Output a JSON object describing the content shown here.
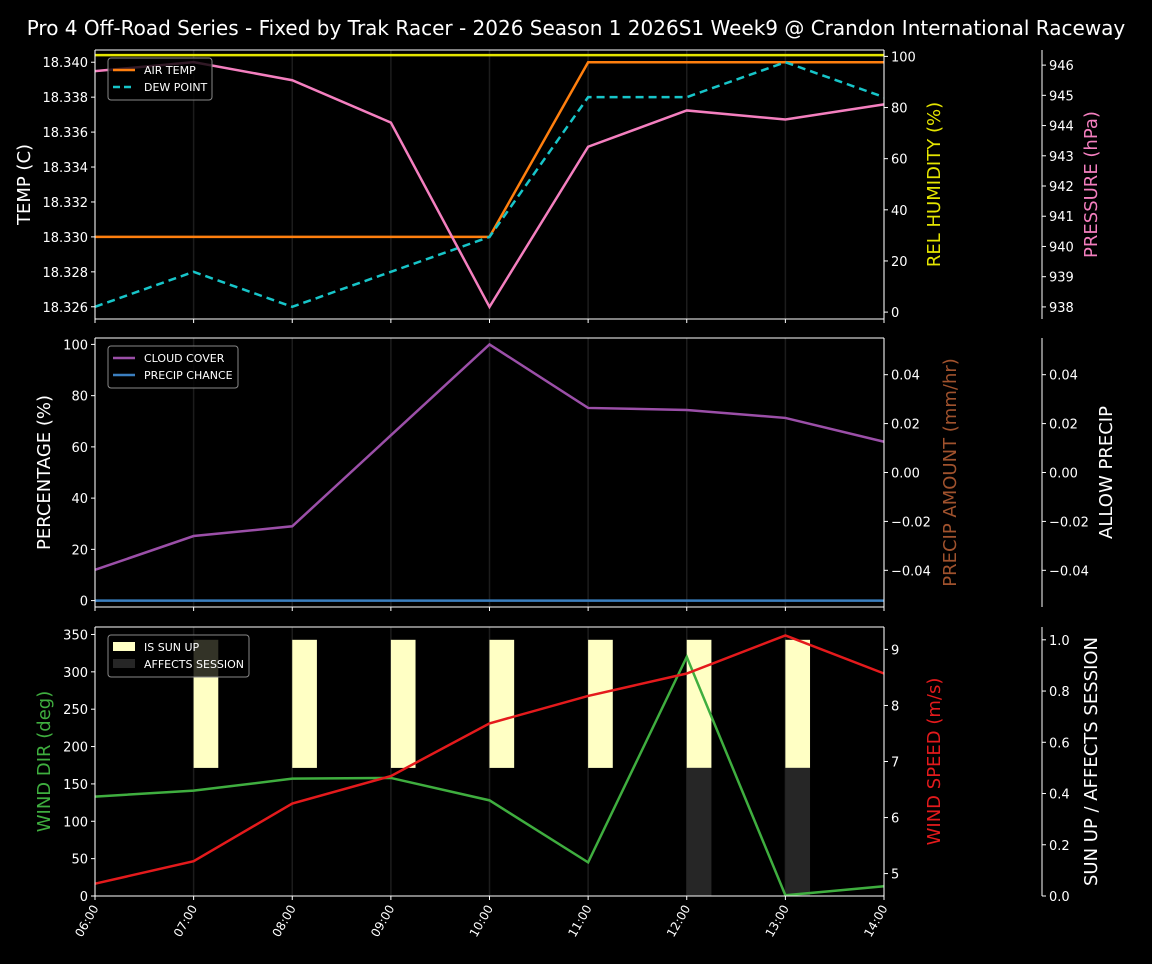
{
  "chart_data": {
    "title": "Pro 4 Off-Road Series - Fixed by Trak Racer - 2026 Season 1 2026S1 Week9 @ Crandon International Raceway",
    "x": [
      "06:00",
      "07:00",
      "08:00",
      "09:00",
      "10:00",
      "11:00",
      "12:00",
      "13:00",
      "14:00"
    ],
    "panels": [
      {
        "type": "line",
        "ylabel": "TEMP (C)",
        "ylim": [
          18.3253,
          18.3407
        ],
        "yticks": [
          "18.326",
          "18.328",
          "18.330",
          "18.332",
          "18.334",
          "18.336",
          "18.338",
          "18.340"
        ],
        "ytick_values": [
          18.326,
          18.328,
          18.33,
          18.332,
          18.334,
          18.336,
          18.338,
          18.34
        ],
        "legend": "top-left",
        "series": [
          {
            "name": "AIR TEMP",
            "color": "#ff7f0e",
            "dash": false,
            "axis": "left",
            "values": [
              18.33,
              18.33,
              18.33,
              18.33,
              18.33,
              18.34,
              18.34,
              18.34,
              18.34
            ]
          },
          {
            "name": "DEW POINT",
            "color": "#17c5c9",
            "dash": true,
            "axis": "left",
            "values": [
              18.326,
              18.328,
              18.326,
              18.328,
              18.33,
              18.338,
              18.338,
              18.34,
              18.338
            ]
          },
          {
            "color": "#e5e500",
            "axis": "right1",
            "values": [
              100.5,
              100.5,
              100.5,
              100.5,
              100.5,
              100.5,
              100.5,
              100.5,
              100.5
            ]
          },
          {
            "color": "#f47fbf",
            "axis": "right2",
            "values": [
              945.8,
              946.1,
              945.5,
              944.1,
              938.0,
              943.3,
              944.5,
              944.2,
              944.7
            ]
          }
        ],
        "right1": {
          "label": "REL HUMIDITY (%)",
          "color": "#e5e500",
          "ylim": [
            -2.7,
            102.5
          ],
          "ticks": [
            0,
            20,
            40,
            60,
            80,
            100
          ]
        },
        "right2": {
          "label": "PRESSURE (hPa)",
          "color": "#f47fbf",
          "ylim": [
            937.6,
            946.5
          ],
          "ticks": [
            938,
            939,
            940,
            941,
            942,
            943,
            944,
            945,
            946
          ]
        }
      },
      {
        "type": "line",
        "ylabel": "PERCENTAGE (%)",
        "ylim": [
          -2.5,
          102.5
        ],
        "yticks": [
          "0",
          "20",
          "40",
          "60",
          "80",
          "100"
        ],
        "ytick_values": [
          0,
          20,
          40,
          60,
          80,
          100
        ],
        "legend": "top-left",
        "series": [
          {
            "name": "CLOUD COVER",
            "color": "#9b4fa8",
            "axis": "left",
            "values": [
              12,
              25.2,
              29,
              64.5,
              100,
              75.2,
              74.4,
              71.3,
              62
            ]
          },
          {
            "name": "PRECIP CHANCE",
            "color": "#3b7fc0",
            "axis": "left",
            "values": [
              0,
              0,
              0,
              0,
              0,
              0,
              0,
              0,
              0
            ]
          }
        ],
        "right1": {
          "label": "PRECIP AMOUNT (mm/hr)",
          "color": "#a0522d",
          "ylim": [
            -0.055,
            0.055
          ],
          "ticks": [
            -0.04,
            -0.02,
            0.0,
            0.02,
            0.04
          ],
          "tick_labels": [
            "−0.04",
            "−0.02",
            "0.00",
            "0.02",
            "0.04"
          ]
        },
        "right2": {
          "label": "ALLOW PRECIP",
          "color": "#ffffff",
          "ylim": [
            -0.055,
            0.055
          ],
          "ticks": [
            -0.04,
            -0.02,
            0.0,
            0.02,
            0.04
          ],
          "tick_labels": [
            "−0.04",
            "−0.02",
            "0.00",
            "0.02",
            "0.04"
          ]
        }
      },
      {
        "type": "line+bar",
        "ylabel": "WIND DIR (deg)",
        "ylabel_color": "#3fae3f",
        "ylim": [
          0,
          360
        ],
        "yticks": [
          "0",
          "50",
          "100",
          "150",
          "200",
          "250",
          "300",
          "350"
        ],
        "ytick_values": [
          0,
          50,
          100,
          150,
          200,
          250,
          300,
          350
        ],
        "legend": "top-left",
        "bars": [
          {
            "name": "IS SUN UP",
            "color": "#ffffc4",
            "base": 0.5,
            "values": [
              0,
              1,
              1,
              1,
              1,
              1,
              1,
              1,
              0
            ]
          },
          {
            "name": "AFFECTS SESSION",
            "color": "#262626",
            "base": 0,
            "values": [
              0,
              0,
              0,
              0,
              0,
              0,
              0.5,
              0.5,
              0
            ]
          }
        ],
        "series": [
          {
            "color": "#3fae3f",
            "axis": "left",
            "values": [
              133,
              141,
              157,
              158,
              128,
              45,
              320,
              1,
              13
            ]
          },
          {
            "color": "#e41a1c",
            "axis": "right1",
            "values": [
              4.82,
              5.22,
              6.25,
              6.74,
              7.68,
              8.17,
              8.57,
              9.25,
              8.57
            ]
          }
        ],
        "right1": {
          "label": "WIND SPEED (m/s)",
          "color": "#e41a1c",
          "ylim": [
            4.6,
            9.4
          ],
          "ticks": [
            5,
            6,
            7,
            8,
            9
          ]
        },
        "right2": {
          "label": "SUN UP / AFFECTS SESSION",
          "color": "#ffffff",
          "ylim": [
            0,
            1.05
          ],
          "ticks": [
            0,
            0.2,
            0.4,
            0.6,
            0.8,
            1.0
          ],
          "tick_labels": [
            "0.0",
            "0.2",
            "0.4",
            "0.6",
            "0.8",
            "1.0"
          ]
        }
      }
    ]
  }
}
